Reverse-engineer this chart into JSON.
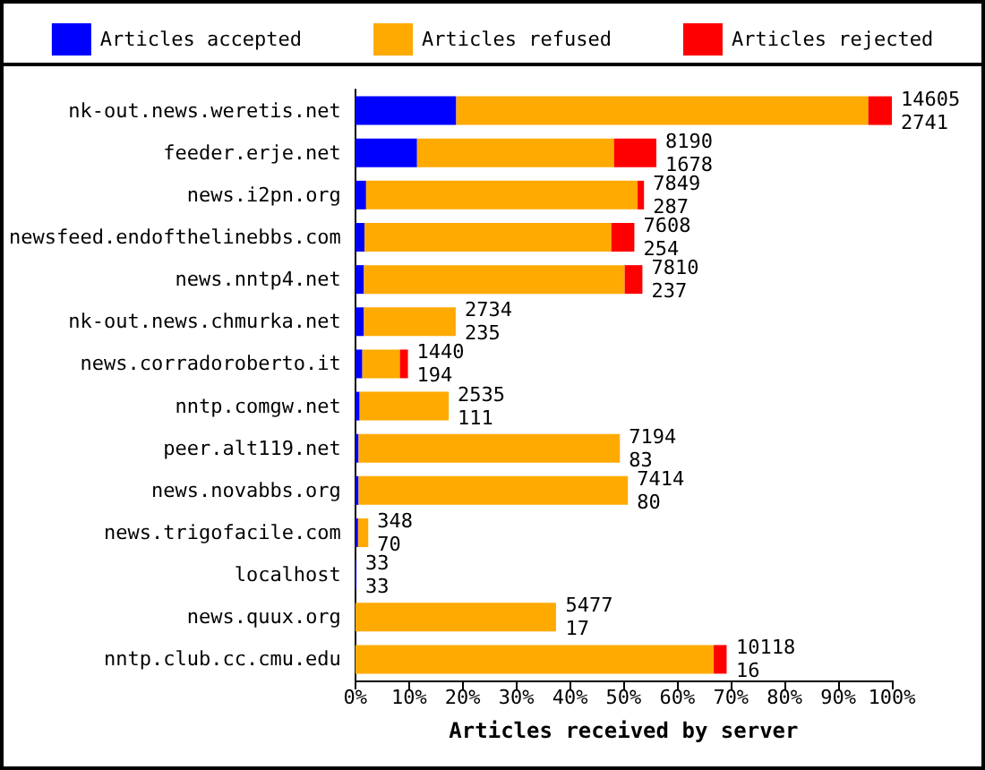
{
  "chart_data": {
    "type": "bar",
    "orientation": "horizontal",
    "stacked": true,
    "categories": [
      "nk-out.news.weretis.net",
      "feeder.erje.net",
      "news.i2pn.org",
      "newsfeed.endofthelinebbs.com",
      "news.nntp4.net",
      "nk-out.news.chmurka.net",
      "news.corradoroberto.it",
      "nntp.comgw.net",
      "peer.alt119.net",
      "news.novabbs.org",
      "news.trigofacile.com",
      "localhost",
      "news.quux.org",
      "nntp.club.cc.cmu.edu"
    ],
    "series": [
      {
        "name": "Articles accepted",
        "color": "#0000ff",
        "values": [
          18.8,
          11.5,
          2.0,
          1.7,
          1.6,
          1.6,
          1.3,
          0.8,
          0.6,
          0.6,
          0.5,
          0.2,
          null,
          null
        ]
      },
      {
        "name": "Articles refused",
        "color": "#ffaa00",
        "values": [
          76.8,
          36.7,
          50.6,
          46.0,
          48.6,
          17.1,
          7.0,
          16.6,
          48.7,
          50.2,
          1.9,
          0,
          37.4,
          66.8
        ]
      },
      {
        "name": "Articles rejected",
        "color": "#ff0000",
        "values": [
          4.4,
          7.9,
          1.2,
          4.3,
          3.3,
          0,
          1.5,
          0,
          0,
          0,
          0,
          0,
          0,
          2.4
        ]
      }
    ],
    "annotations": [
      {
        "text": "14605\n2741",
        "x": 100,
        "y": "nk-out.news.weretis.net"
      },
      {
        "text": "8190\n1678",
        "x": 56.1,
        "y": "feeder.erje.net"
      },
      {
        "text": "7849\n287",
        "x": 53.8,
        "y": "news.i2pn.org"
      },
      {
        "text": "7608\n254",
        "x": 52.0,
        "y": "newsfeed.endofthelinebbs.com"
      },
      {
        "text": "7810\n237",
        "x": 53.5,
        "y": "news.nntp4.net"
      },
      {
        "text": "2734\n235",
        "x": 18.7,
        "y": "nk-out.news.chmurka.net"
      },
      {
        "text": "1440\n194",
        "x": 9.8,
        "y": "news.corradoroberto.it"
      },
      {
        "text": "2535\n111",
        "x": 17.4,
        "y": "nntp.comgw.net"
      },
      {
        "text": "7194\n83",
        "x": 49.3,
        "y": "peer.alt119.net"
      },
      {
        "text": "7414\n80",
        "x": 50.8,
        "y": "news.novabbs.org"
      },
      {
        "text": "348\n70",
        "x": 2.4,
        "y": "news.trigofacile.com"
      },
      {
        "text": "33\n33",
        "x": 0.2,
        "y": "localhost"
      },
      {
        "text": "5477\n17",
        "x": 37.5,
        "y": "news.quux.org"
      },
      {
        "text": "10118\n16",
        "x": 69.3,
        "y": "nntp.club.cc.cmu.edu"
      }
    ],
    "xlim": [
      0,
      100
    ],
    "xticks": [
      {
        "value": 0,
        "label": "0%"
      },
      {
        "value": 10,
        "label": "10%"
      },
      {
        "value": 20,
        "label": "20%"
      },
      {
        "value": 30,
        "label": "30%"
      },
      {
        "value": 40,
        "label": "40%"
      },
      {
        "value": 50,
        "label": "50%"
      },
      {
        "value": 60,
        "label": "60%"
      },
      {
        "value": 70,
        "label": "70%"
      },
      {
        "value": 80,
        "label": "80%"
      },
      {
        "value": 90,
        "label": "90%"
      },
      {
        "value": 100,
        "label": "100%"
      }
    ],
    "xlabel": "Articles received by server",
    "legend": "top",
    "grid": false
  }
}
